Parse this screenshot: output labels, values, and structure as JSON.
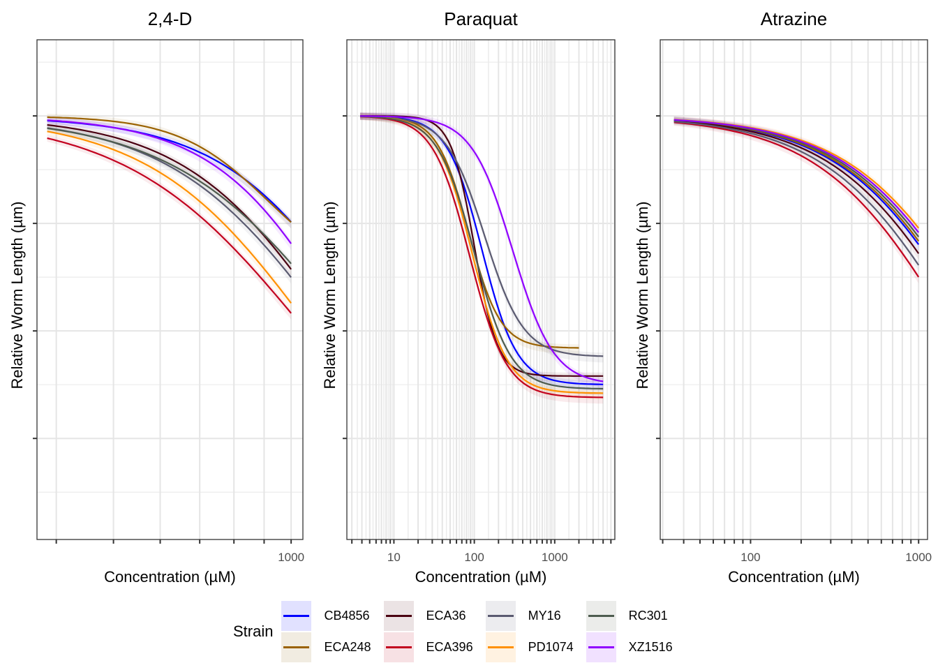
{
  "chart_data": {
    "type": "line",
    "layout": "3 facet panels side by side, shared legend at bottom",
    "legend": {
      "title": "Strain",
      "placement": "bottom"
    },
    "y_axis": {
      "label": "Relative Worm Length (µm)",
      "major_ticks": [
        0.25,
        0.5,
        0.75,
        1.0
      ],
      "minor_ticks": [
        0.125,
        0.375,
        0.625,
        0.875,
        1.125
      ],
      "tick_labels_shown": false,
      "range": [
        0.015,
        1.177
      ]
    },
    "series_styles": [
      {
        "name": "CB4856",
        "color": "#0000FF",
        "ribbon": "#E1E1FF"
      },
      {
        "name": "ECA248",
        "color": "#9A6200",
        "ribbon": "#F1ECE1"
      },
      {
        "name": "ECA36",
        "color": "#4A0011",
        "ribbon": "#EBE3E4"
      },
      {
        "name": "ECA396",
        "color": "#C2001E",
        "ribbon": "#F7E1E4"
      },
      {
        "name": "MY16",
        "color": "#5A5A70",
        "ribbon": "#ECECEF"
      },
      {
        "name": "PD1074",
        "color": "#FF9000",
        "ribbon": "#FFF2E1"
      },
      {
        "name": "RC301",
        "color": "#4E5C4F",
        "ribbon": "#EBECEA"
      },
      {
        "name": "XZ1516",
        "color": "#9000FF",
        "ribbon": "#F1E1FF"
      }
    ],
    "curve_model": "y = bottom + (top - bottom) / (1 + (x / ec50)^slope)",
    "panels": [
      {
        "title": "2,4-D",
        "xlabel": "Concentration (µM)",
        "xscale": "log10",
        "xlim": [
          371,
          1047
        ],
        "x_ticks": [
          400,
          500,
          600,
          700,
          800,
          900,
          1000
        ],
        "x_tick_labels": [
          {
            "value": 1000,
            "label": "1000"
          }
        ],
        "series": [
          {
            "name": "CB4856",
            "top": 1.0,
            "bottom": 0.0,
            "ec50": 1369,
            "slope": 3.55,
            "x_range": [
              386,
              1000
            ],
            "y_end": 0.753
          },
          {
            "name": "ECA248",
            "top": 1.0,
            "bottom": 0.6,
            "ec50": 918,
            "slope": 5.63,
            "x_range": [
              386,
              1000
            ],
            "y_end": 0.753
          },
          {
            "name": "ECA36",
            "top": 1.0,
            "bottom": 0.0,
            "ec50": 1188,
            "slope": 3.42,
            "x_range": [
              386,
              1000
            ],
            "y_end": 0.643
          },
          {
            "name": "ECA396",
            "top": 1.0,
            "bottom": 0.0,
            "ec50": 1059,
            "slope": 2.88,
            "x_range": [
              386,
              1000
            ],
            "y_end": 0.541
          },
          {
            "name": "MY16",
            "top": 1.0,
            "bottom": 0.0,
            "ec50": 1173,
            "slope": 3.19,
            "x_range": [
              386,
              1000
            ],
            "y_end": 0.625
          },
          {
            "name": "PD1074",
            "top": 1.0,
            "bottom": 0.0,
            "ec50": 1085,
            "slope": 3.18,
            "x_range": [
              386,
              1000
            ],
            "y_end": 0.565
          },
          {
            "name": "RC301",
            "top": 1.0,
            "bottom": 0.0,
            "ec50": 1240,
            "slope": 3.01,
            "x_range": [
              386,
              1000
            ],
            "y_end": 0.656
          },
          {
            "name": "XZ1516",
            "top": 1.0,
            "bottom": 0.0,
            "ec50": 1245,
            "slope": 3.93,
            "x_range": [
              386,
              1000
            ],
            "y_end": 0.703
          }
        ]
      },
      {
        "title": "Paraquat",
        "xlabel": "Concentration (µM)",
        "xscale": "log10",
        "xlim": [
          2.6,
          5600
        ],
        "x_ticks": [
          3,
          4,
          5,
          6,
          7,
          8,
          9,
          10,
          20,
          30,
          40,
          50,
          60,
          70,
          80,
          90,
          100,
          200,
          300,
          400,
          500,
          600,
          700,
          800,
          900,
          1000,
          2000,
          3000,
          4000,
          5000
        ],
        "x_tick_labels": [
          {
            "value": 10,
            "label": "10"
          },
          {
            "value": 100,
            "label": "100"
          },
          {
            "value": 1000,
            "label": "1000"
          }
        ],
        "series": [
          {
            "name": "CB4856",
            "top": 1.0,
            "bottom": 0.375,
            "ec50": 125,
            "slope": 2.0,
            "x_range": [
              3.8,
              4000
            ],
            "y_end": 0.386
          },
          {
            "name": "ECA248",
            "top": 1.0,
            "bottom": 0.46,
            "ec50": 85,
            "slope": 2.2,
            "x_range": [
              3.8,
              2000
            ],
            "y_end": 0.468
          },
          {
            "name": "ECA36",
            "top": 1.0,
            "bottom": 0.395,
            "ec50": 100,
            "slope": 3.0,
            "x_range": [
              3.8,
              4000
            ],
            "y_end": 0.398
          },
          {
            "name": "ECA396",
            "top": 1.0,
            "bottom": 0.345,
            "ec50": 88,
            "slope": 1.9,
            "x_range": [
              3.8,
              4000
            ],
            "y_end": 0.359
          },
          {
            "name": "MY16",
            "top": 1.0,
            "bottom": 0.44,
            "ec50": 135,
            "slope": 1.8,
            "x_range": [
              3.8,
              4000
            ],
            "y_end": 0.45
          },
          {
            "name": "PD1074",
            "top": 1.0,
            "bottom": 0.355,
            "ec50": 95,
            "slope": 2.0,
            "x_range": [
              3.8,
              4000
            ],
            "y_end": 0.368
          },
          {
            "name": "RC301",
            "top": 1.0,
            "bottom": 0.365,
            "ec50": 100,
            "slope": 1.9,
            "x_range": [
              3.8,
              4000
            ],
            "y_end": 0.377
          },
          {
            "name": "XZ1516",
            "top": 1.0,
            "bottom": 0.375,
            "ec50": 300,
            "slope": 1.7,
            "x_range": [
              3.8,
              4000
            ],
            "y_end": 0.385
          }
        ]
      },
      {
        "title": "Atrazine",
        "xlabel": "Concentration (µM)",
        "xscale": "log10",
        "xlim": [
          29,
          1130
        ],
        "x_ticks": [
          30,
          40,
          50,
          60,
          70,
          80,
          90,
          100,
          200,
          300,
          400,
          500,
          600,
          700,
          800,
          900,
          1000
        ],
        "x_tick_labels": [
          {
            "value": 100,
            "label": "100"
          },
          {
            "value": 1000,
            "label": "1000"
          }
        ],
        "series": [
          {
            "name": "CB4856",
            "top": 1.0,
            "bottom": 0.0,
            "ec50": 2169,
            "slope": 1.1,
            "x_range": [
              35,
              1000
            ],
            "y_end": 0.701
          },
          {
            "name": "ECA248",
            "top": 1.0,
            "bottom": 0.0,
            "ec50": 2247,
            "slope": 1.1,
            "x_range": [
              35,
              1000
            ],
            "y_end": 0.709
          },
          {
            "name": "ECA36",
            "top": 1.0,
            "bottom": 0.0,
            "ec50": 1984,
            "slope": 1.1,
            "x_range": [
              35,
              1000
            ],
            "y_end": 0.68
          },
          {
            "name": "ECA396",
            "top": 1.0,
            "bottom": 0.0,
            "ec50": 1592,
            "slope": 1.1,
            "x_range": [
              35,
              1000
            ],
            "y_end": 0.625
          },
          {
            "name": "MY16",
            "top": 1.0,
            "bottom": 0.0,
            "ec50": 1776,
            "slope": 1.1,
            "x_range": [
              35,
              1000
            ],
            "y_end": 0.653
          },
          {
            "name": "PD1074",
            "top": 1.0,
            "bottom": 0.0,
            "ec50": 2577,
            "slope": 1.1,
            "x_range": [
              35,
              1000
            ],
            "y_end": 0.739
          },
          {
            "name": "RC301",
            "top": 1.0,
            "bottom": 0.0,
            "ec50": 2347,
            "slope": 1.1,
            "x_range": [
              35,
              1000
            ],
            "y_end": 0.719
          },
          {
            "name": "XZ1516",
            "top": 1.0,
            "bottom": 0.0,
            "ec50": 2457,
            "slope": 1.1,
            "x_range": [
              35,
              1000
            ],
            "y_end": 0.729
          }
        ]
      }
    ]
  },
  "legend_items": [
    {
      "name": "CB4856"
    },
    {
      "name": "ECA248"
    },
    {
      "name": "ECA36"
    },
    {
      "name": "ECA396"
    },
    {
      "name": "MY16"
    },
    {
      "name": "PD1074"
    },
    {
      "name": "RC301"
    },
    {
      "name": "XZ1516"
    }
  ]
}
